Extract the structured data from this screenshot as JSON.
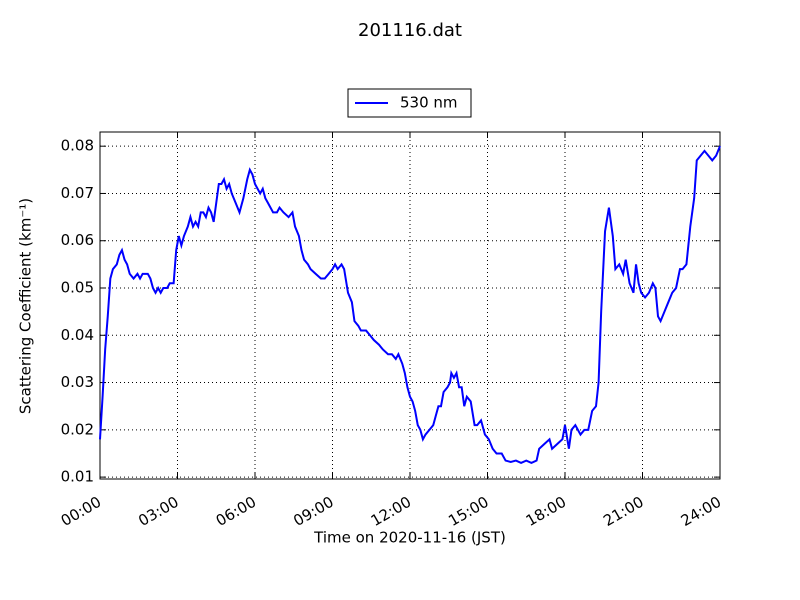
{
  "chart_data": {
    "type": "line",
    "title": "201116.dat",
    "xlabel": "Time on 2020-11-16 (JST)",
    "ylabel": "Scattering Coefficient (km⁻¹)",
    "xlim": [
      0,
      24
    ],
    "ylim": [
      0.0096,
      0.083
    ],
    "xticks": [
      {
        "value": 0,
        "label": "00:00"
      },
      {
        "value": 3,
        "label": "03:00"
      },
      {
        "value": 6,
        "label": "06:00"
      },
      {
        "value": 9,
        "label": "09:00"
      },
      {
        "value": 12,
        "label": "12:00"
      },
      {
        "value": 15,
        "label": "15:00"
      },
      {
        "value": 18,
        "label": "18:00"
      },
      {
        "value": 21,
        "label": "21:00"
      },
      {
        "value": 24,
        "label": "24:00"
      }
    ],
    "yticks": [
      0.01,
      0.02,
      0.03,
      0.04,
      0.05,
      0.06,
      0.07,
      0.08
    ],
    "grid": true,
    "legend": "top",
    "x": [
      0.0,
      0.1,
      0.2,
      0.3,
      0.4,
      0.5,
      0.65,
      0.75,
      0.85,
      0.95,
      1.05,
      1.15,
      1.3,
      1.45,
      1.55,
      1.65,
      1.85,
      1.95,
      2.05,
      2.15,
      2.25,
      2.35,
      2.45,
      2.6,
      2.7,
      2.85,
      2.95,
      3.05,
      3.15,
      3.25,
      3.4,
      3.5,
      3.6,
      3.7,
      3.8,
      3.9,
      4.0,
      4.1,
      4.2,
      4.3,
      4.4,
      4.5,
      4.6,
      4.7,
      4.8,
      4.9,
      5.0,
      5.1,
      5.25,
      5.4,
      5.55,
      5.7,
      5.8,
      5.9,
      6.0,
      6.1,
      6.2,
      6.3,
      6.4,
      6.5,
      6.7,
      6.85,
      6.95,
      7.1,
      7.3,
      7.45,
      7.55,
      7.7,
      7.8,
      7.9,
      8.05,
      8.15,
      8.35,
      8.55,
      8.7,
      8.85,
      9.0,
      9.1,
      9.2,
      9.35,
      9.45,
      9.6,
      9.75,
      9.85,
      10.0,
      10.1,
      10.3,
      10.45,
      10.6,
      10.8,
      10.95,
      11.15,
      11.3,
      11.45,
      11.55,
      11.7,
      11.8,
      11.9,
      12.0,
      12.1,
      12.2,
      12.3,
      12.4,
      12.5,
      12.6,
      12.75,
      12.9,
      13.0,
      13.1,
      13.2,
      13.3,
      13.45,
      13.55,
      13.6,
      13.7,
      13.8,
      13.9,
      14.0,
      14.1,
      14.2,
      14.35,
      14.5,
      14.6,
      14.75,
      14.9,
      15.05,
      15.2,
      15.35,
      15.55,
      15.7,
      15.9,
      16.1,
      16.3,
      16.5,
      16.7,
      16.9,
      17.0,
      17.2,
      17.4,
      17.5,
      17.7,
      17.9,
      18.0,
      18.15,
      18.25,
      18.4,
      18.6,
      18.75,
      18.9,
      19.05,
      19.2,
      19.3,
      19.4,
      19.55,
      19.7,
      19.85,
      19.95,
      20.1,
      20.25,
      20.35,
      20.5,
      20.65,
      20.75,
      20.85,
      20.95,
      21.1,
      21.25,
      21.4,
      21.5,
      21.6,
      21.7,
      21.85,
      22.0,
      22.15,
      22.3,
      22.45,
      22.55,
      22.7,
      22.85,
      23.0,
      23.1,
      23.25,
      23.4,
      23.55,
      23.7,
      23.85,
      24.0
    ],
    "series": [
      {
        "name": "530 nm",
        "color": "#0000ff",
        "values": [
          0.018,
          0.027,
          0.037,
          0.044,
          0.052,
          0.054,
          0.055,
          0.057,
          0.058,
          0.056,
          0.055,
          0.053,
          0.052,
          0.053,
          0.052,
          0.053,
          0.053,
          0.052,
          0.05,
          0.049,
          0.05,
          0.049,
          0.05,
          0.05,
          0.051,
          0.051,
          0.058,
          0.061,
          0.059,
          0.061,
          0.063,
          0.065,
          0.063,
          0.064,
          0.063,
          0.066,
          0.066,
          0.065,
          0.067,
          0.066,
          0.064,
          0.068,
          0.072,
          0.072,
          0.073,
          0.071,
          0.072,
          0.07,
          0.068,
          0.066,
          0.069,
          0.073,
          0.075,
          0.074,
          0.072,
          0.071,
          0.07,
          0.071,
          0.069,
          0.068,
          0.066,
          0.066,
          0.067,
          0.066,
          0.065,
          0.066,
          0.063,
          0.061,
          0.058,
          0.056,
          0.055,
          0.054,
          0.053,
          0.052,
          0.052,
          0.053,
          0.054,
          0.055,
          0.054,
          0.055,
          0.054,
          0.049,
          0.047,
          0.043,
          0.042,
          0.041,
          0.041,
          0.04,
          0.039,
          0.038,
          0.037,
          0.036,
          0.036,
          0.035,
          0.036,
          0.034,
          0.032,
          0.029,
          0.027,
          0.026,
          0.024,
          0.021,
          0.02,
          0.018,
          0.019,
          0.02,
          0.021,
          0.023,
          0.025,
          0.025,
          0.028,
          0.029,
          0.03,
          0.032,
          0.031,
          0.032,
          0.029,
          0.029,
          0.025,
          0.027,
          0.026,
          0.021,
          0.021,
          0.022,
          0.019,
          0.018,
          0.016,
          0.015,
          0.015,
          0.0135,
          0.0132,
          0.0135,
          0.013,
          0.0135,
          0.013,
          0.0135,
          0.016,
          0.017,
          0.018,
          0.016,
          0.017,
          0.018,
          0.021,
          0.016,
          0.02,
          0.021,
          0.019,
          0.02,
          0.02,
          0.024,
          0.025,
          0.03,
          0.045,
          0.062,
          0.067,
          0.061,
          0.054,
          0.055,
          0.053,
          0.056,
          0.051,
          0.049,
          0.055,
          0.051,
          0.049,
          0.048,
          0.049,
          0.051,
          0.05,
          0.044,
          0.043,
          0.045,
          0.047,
          0.049,
          0.05,
          0.054,
          0.054,
          0.055,
          0.063,
          0.069,
          0.077,
          0.078,
          0.079,
          0.078,
          0.077,
          0.078,
          0.08
        ]
      }
    ]
  }
}
